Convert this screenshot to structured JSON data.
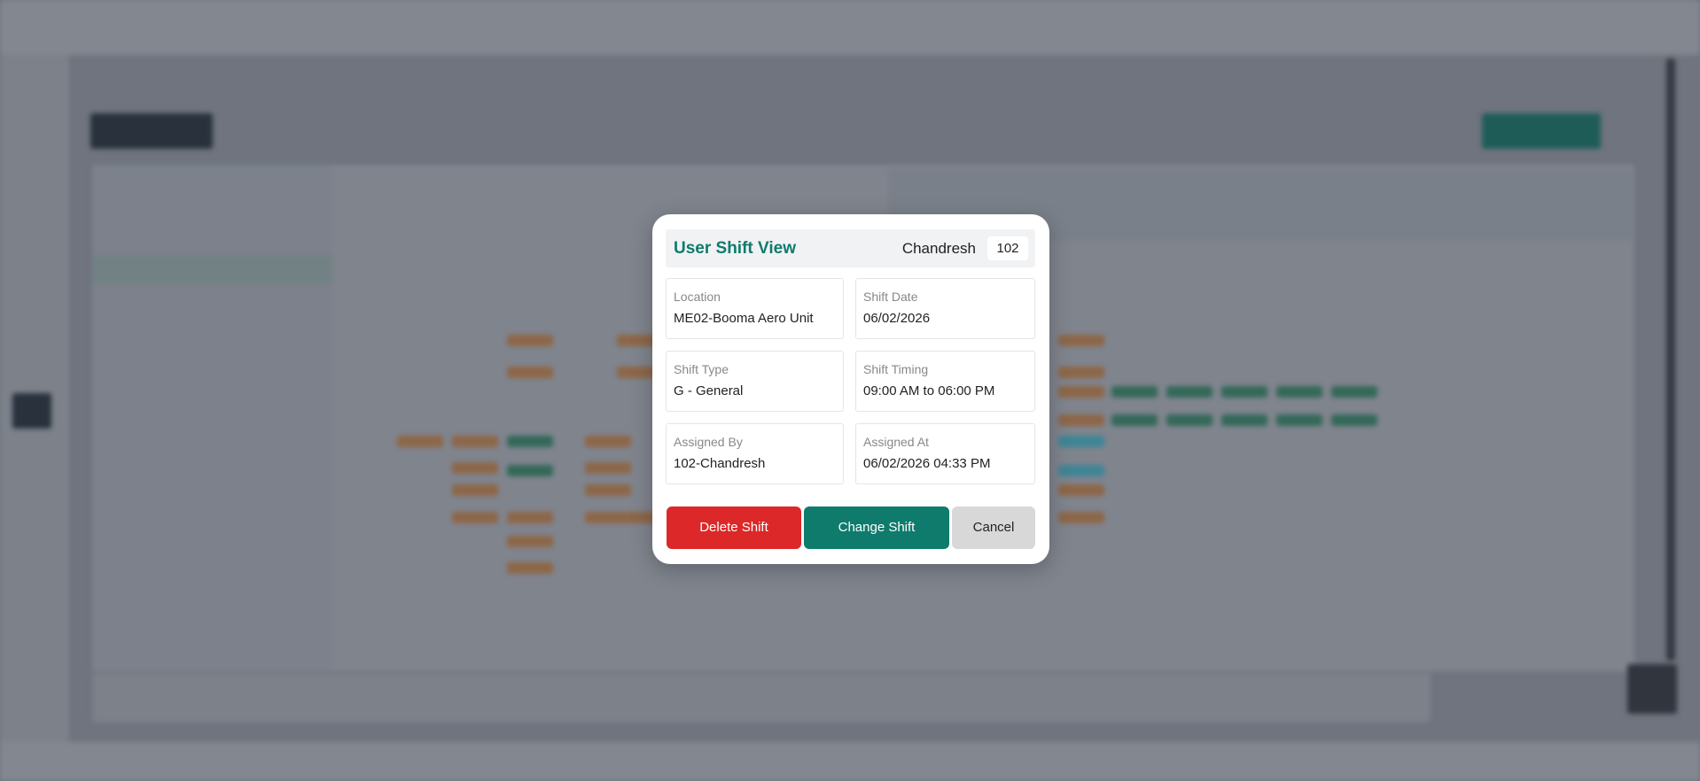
{
  "modal": {
    "title": "User Shift View",
    "user_name": "Chandresh",
    "user_id": "102",
    "fields": [
      {
        "label": "Location",
        "value": "ME02-Booma Aero Unit"
      },
      {
        "label": "Shift Date",
        "value": "06/02/2026"
      },
      {
        "label": "Shift Type",
        "value": "G - General"
      },
      {
        "label": "Shift Timing",
        "value": "09:00 AM to 06:00 PM"
      },
      {
        "label": "Assigned By",
        "value": "102-Chandresh"
      },
      {
        "label": "Assigned At",
        "value": "06/02/2026 04:33 PM"
      }
    ],
    "buttons": [
      "Delete Shift",
      "Change Shift",
      "Cancel"
    ]
  }
}
